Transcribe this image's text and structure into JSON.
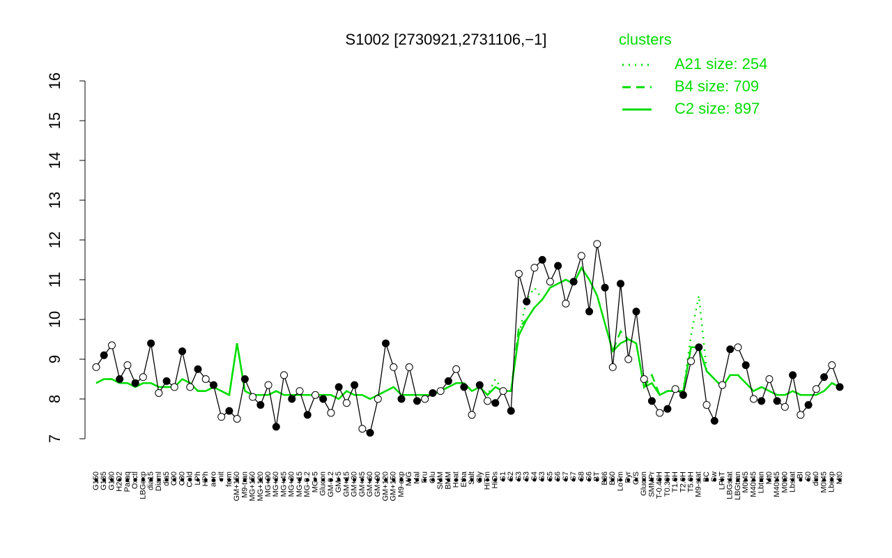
{
  "chart_data": {
    "type": "line",
    "title": "S1002 [2730921,2731106,−1]",
    "legend_title": "clusters",
    "legend_color": "#00dd00",
    "point_color": "#000000",
    "ylim": [
      7,
      16
    ],
    "yticks": [
      7,
      8,
      9,
      10,
      11,
      12,
      13,
      14,
      15,
      16
    ],
    "categories": [
      "G150",
      "G135",
      "G180",
      "H2O2",
      "Paraq",
      "Oxctl",
      "LBGexp",
      "dia15",
      "Diaml",
      "dia5",
      "C90",
      "C30",
      "Cold",
      "LPh",
      "HPh",
      "aero",
      "nit",
      "ferm",
      "GM+150",
      "M9-tran",
      "MG+150",
      "MG+120",
      "MG+90",
      "MG+60",
      "MG+45",
      "MG+30",
      "MG+15",
      "MG-0.2",
      "MG+5",
      "Glucon",
      "GM-0.2",
      "GM+5",
      "GM+15",
      "GM+30",
      "GM+45",
      "GM+60",
      "GM+90",
      "GM+120",
      "GM+150",
      "M9-exp",
      "M/G",
      "Mal",
      "Fru",
      "Glu",
      "SMM",
      "BMM",
      "Heat",
      "Etha",
      "Salt",
      "Gly",
      "HiTm",
      "HiOs",
      "S1",
      "S2",
      "S3",
      "S3",
      "S4",
      "S3",
      "S5",
      "S6",
      "S7",
      "S7",
      "S8",
      "S6",
      "BT",
      "B36",
      "B60",
      "LoTm",
      "Pyr",
      "G/S",
      "Glucon",
      "SMMPr",
      "T-0.40H",
      "T0.30H",
      "T1.0H",
      "T2.0H",
      "T5.0H",
      "M9-stat",
      "BC",
      "Sw",
      "LPhT",
      "LBGstat",
      "LBGtran",
      "M0t45",
      "M40t45",
      "Lbtran",
      "Mt0",
      "M40t45",
      "M0t90",
      "Lbstat",
      "BI",
      "S0",
      "dia0",
      "M0t45",
      "Lbexp",
      "Mt0"
    ],
    "values": [
      8.8,
      9.1,
      9.35,
      8.5,
      8.85,
      8.4,
      8.55,
      9.4,
      8.15,
      8.45,
      8.3,
      9.2,
      8.3,
      8.75,
      8.5,
      8.35,
      7.55,
      7.7,
      7.5,
      8.5,
      8.05,
      7.85,
      8.35,
      7.3,
      8.6,
      8.0,
      8.2,
      7.6,
      8.1,
      8.0,
      7.65,
      8.3,
      7.9,
      8.35,
      7.25,
      7.15,
      8.0,
      9.4,
      8.8,
      8.0,
      8.8,
      7.95,
      8.0,
      8.15,
      8.2,
      8.45,
      8.75,
      8.3,
      7.6,
      8.35,
      7.95,
      7.9,
      8.2,
      7.7,
      11.15,
      10.45,
      11.3,
      11.5,
      10.95,
      11.35,
      10.4,
      10.95,
      11.6,
      10.2,
      11.9,
      10.8,
      8.8,
      10.9,
      9.0,
      10.2,
      8.5,
      7.95,
      7.65,
      7.75,
      8.25,
      8.1,
      8.95,
      9.3,
      7.85,
      7.45,
      8.35,
      9.25,
      9.3,
      8.85,
      8.0,
      7.95,
      8.5,
      7.95,
      7.8,
      8.6,
      7.6,
      7.85,
      8.25,
      8.55,
      8.85,
      8.3
    ],
    "series": [
      {
        "name": "A21 size: 254",
        "color": "#00dd00",
        "style": "dotted",
        "values": [
          8.4,
          8.5,
          8.5,
          8.4,
          8.4,
          8.3,
          8.4,
          8.4,
          8.3,
          8.3,
          8.3,
          8.5,
          8.4,
          8.2,
          8.2,
          8.3,
          8.2,
          8.1,
          9.4,
          8.2,
          8.1,
          8.1,
          8.1,
          8.2,
          8.1,
          8.1,
          8.1,
          8.1,
          8.1,
          8.1,
          8.1,
          8.0,
          8.2,
          8.1,
          8.1,
          8.0,
          8.1,
          8.2,
          8.3,
          8.1,
          8.1,
          8.1,
          8.1,
          8.1,
          8.2,
          8.3,
          8.4,
          8.4,
          8.2,
          8.3,
          8.1,
          8.5,
          8.2,
          8.2,
          9.6,
          10.5,
          10.8,
          10.5,
          10.8,
          10.9,
          11.0,
          10.9,
          11.3,
          11.0,
          10.6,
          9.9,
          9.2,
          9.4,
          9.5,
          9.4,
          8.3,
          8.4,
          8.1,
          8.2,
          8.2,
          8.2,
          9.6,
          10.6,
          8.7,
          8.5,
          8.3,
          8.6,
          8.6,
          8.4,
          8.2,
          8.3,
          8.2,
          8.1,
          8.1,
          8.2,
          8.1,
          8.1,
          8.1,
          8.2,
          8.4,
          8.3
        ]
      },
      {
        "name": "B4 size: 709",
        "color": "#00dd00",
        "style": "dashed",
        "values": [
          8.4,
          8.5,
          8.5,
          8.4,
          8.4,
          8.3,
          8.4,
          8.4,
          8.3,
          8.3,
          8.3,
          8.5,
          8.4,
          8.2,
          8.2,
          8.3,
          8.2,
          8.1,
          9.4,
          8.2,
          8.1,
          8.1,
          8.1,
          8.2,
          8.1,
          8.1,
          8.1,
          8.1,
          8.1,
          8.1,
          8.1,
          8.0,
          8.2,
          8.1,
          8.1,
          8.0,
          8.1,
          8.2,
          8.3,
          8.1,
          8.1,
          8.1,
          8.1,
          8.1,
          8.2,
          8.3,
          8.4,
          8.4,
          8.2,
          8.3,
          8.1,
          8.3,
          8.2,
          8.2,
          9.8,
          10.0,
          10.3,
          10.5,
          10.8,
          10.9,
          11.0,
          10.9,
          11.3,
          11.0,
          10.6,
          9.9,
          9.2,
          9.7,
          9.5,
          9.4,
          8.3,
          8.6,
          8.1,
          8.2,
          8.2,
          8.2,
          9.3,
          9.3,
          8.7,
          8.5,
          8.3,
          8.6,
          8.6,
          8.4,
          8.2,
          8.3,
          8.2,
          8.1,
          8.1,
          8.2,
          8.1,
          8.1,
          8.1,
          8.2,
          8.4,
          8.3
        ]
      },
      {
        "name": "C2 size: 897",
        "color": "#00dd00",
        "style": "solid",
        "values": [
          8.4,
          8.5,
          8.5,
          8.4,
          8.4,
          8.3,
          8.4,
          8.4,
          8.3,
          8.3,
          8.3,
          8.5,
          8.4,
          8.2,
          8.2,
          8.3,
          8.2,
          8.1,
          9.4,
          8.2,
          8.1,
          8.1,
          8.1,
          8.2,
          8.1,
          8.1,
          8.1,
          8.1,
          8.1,
          8.1,
          8.1,
          8.0,
          8.2,
          8.1,
          8.1,
          8.0,
          8.1,
          8.2,
          8.3,
          8.1,
          8.1,
          8.1,
          8.1,
          8.1,
          8.2,
          8.3,
          8.4,
          8.4,
          8.2,
          8.3,
          8.1,
          8.3,
          8.2,
          8.2,
          9.6,
          10.0,
          10.3,
          10.5,
          10.8,
          10.9,
          11.0,
          10.9,
          11.3,
          11.0,
          10.6,
          9.9,
          9.2,
          9.4,
          9.5,
          9.4,
          8.3,
          8.4,
          8.1,
          8.2,
          8.2,
          8.2,
          9.3,
          9.3,
          8.7,
          8.5,
          8.3,
          8.6,
          8.6,
          8.4,
          8.2,
          8.3,
          8.2,
          8.1,
          8.1,
          8.2,
          8.1,
          8.1,
          8.1,
          8.2,
          8.4,
          8.3
        ]
      }
    ]
  }
}
